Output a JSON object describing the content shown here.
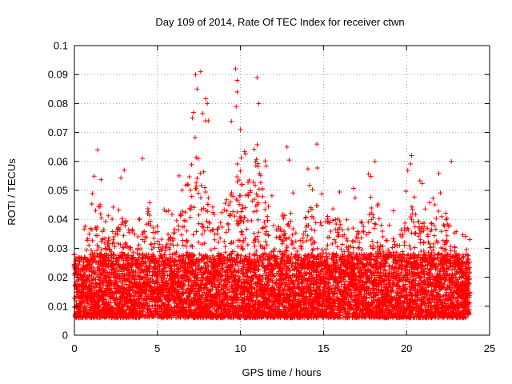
{
  "chart_data": {
    "type": "scatter",
    "title": "Day 109 of 2014, Rate Of TEC Index for receiver ctwn",
    "xlabel": "GPS time / hours",
    "ylabel": "ROTI / TECUs",
    "xlim": [
      0,
      25
    ],
    "ylim": [
      0,
      0.1
    ],
    "xticks": [
      0,
      5,
      10,
      15,
      20,
      25
    ],
    "xtick_labels": [
      "0",
      "5",
      "10",
      "15",
      "20",
      "25"
    ],
    "yticks": [
      0,
      0.01,
      0.02,
      0.03,
      0.04,
      0.05,
      0.06,
      0.07,
      0.08,
      0.09,
      0.1
    ],
    "ytick_labels": [
      "0",
      "0.01",
      "0.02",
      "0.03",
      "0.04",
      "0.05",
      "0.06",
      "0.07",
      "0.08",
      "0.09",
      "0.1"
    ],
    "grid": true,
    "marker": "+",
    "color": "#ff0000",
    "series": [
      {
        "name": "ROTI",
        "x_range": [
          0,
          23.8
        ],
        "envelope_hours": [
          0.0,
          0.5,
          1.0,
          1.4,
          2.0,
          3.0,
          4.0,
          4.5,
          5.0,
          6.0,
          6.8,
          7.2,
          7.6,
          8.0,
          8.5,
          9.0,
          9.7,
          10.3,
          11.0,
          11.6,
          12.2,
          12.8,
          13.5,
          14.5,
          15.0,
          16.0,
          17.0,
          18.0,
          18.5,
          19.5,
          20.3,
          21.0,
          21.6,
          22.3,
          23.0,
          23.8
        ],
        "envelope_max": [
          0.03,
          0.035,
          0.052,
          0.064,
          0.045,
          0.057,
          0.045,
          0.061,
          0.046,
          0.05,
          0.074,
          0.09,
          0.091,
          0.08,
          0.055,
          0.06,
          0.092,
          0.071,
          0.089,
          0.062,
          0.049,
          0.065,
          0.05,
          0.066,
          0.058,
          0.055,
          0.05,
          0.061,
          0.044,
          0.047,
          0.062,
          0.053,
          0.054,
          0.06,
          0.038,
          0.034
        ],
        "typical_range": [
          0.005,
          0.025
        ],
        "extremes": [
          [
            7.6,
            0.091
          ],
          [
            9.7,
            0.092
          ],
          [
            11.0,
            0.089
          ],
          [
            7.3,
            0.09
          ],
          [
            9.8,
            0.088
          ],
          [
            9.8,
            0.084
          ],
          [
            8.0,
            0.08
          ],
          [
            11.1,
            0.08
          ],
          [
            7.1,
            0.075
          ],
          [
            7.9,
            0.074
          ],
          [
            10.0,
            0.071
          ],
          [
            1.4,
            0.064
          ],
          [
            12.8,
            0.065
          ],
          [
            14.6,
            0.066
          ],
          [
            20.3,
            0.062
          ],
          [
            22.7,
            0.06
          ],
          [
            18.1,
            0.06
          ],
          [
            4.1,
            0.061
          ],
          [
            6.3,
            0.055
          ],
          [
            3.0,
            0.057
          ]
        ]
      }
    ]
  }
}
